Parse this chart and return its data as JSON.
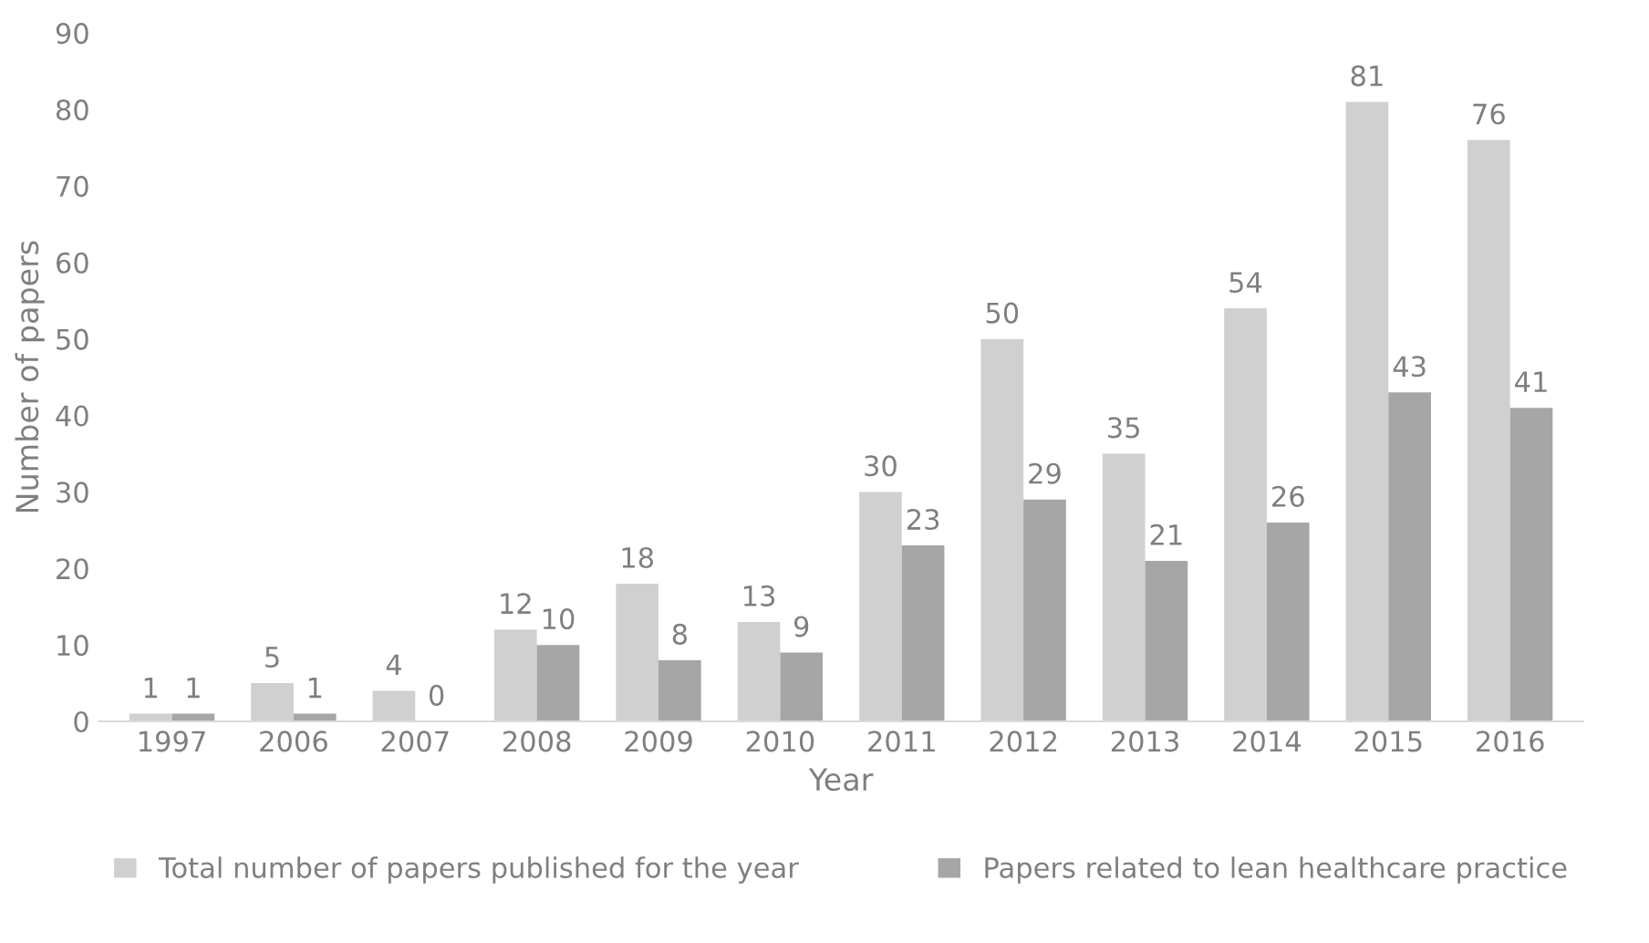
{
  "chart_data": {
    "type": "bar",
    "xlabel": "Year",
    "ylabel": "Number of papers",
    "categories": [
      "1997",
      "2006",
      "2007",
      "2008",
      "2009",
      "2010",
      "2011",
      "2012",
      "2013",
      "2014",
      "2015",
      "2016"
    ],
    "series": [
      {
        "name": "Total number of papers published for the year",
        "color": "#d0d0d0",
        "values": [
          1,
          5,
          4,
          12,
          18,
          13,
          30,
          50,
          35,
          54,
          81,
          76
        ]
      },
      {
        "name": "Papers related to lean healthcare practice",
        "color": "#a6a6a6",
        "values": [
          1,
          1,
          0,
          10,
          8,
          9,
          23,
          29,
          21,
          26,
          43,
          41
        ]
      }
    ],
    "ylim": [
      0,
      90
    ],
    "yticks": [
      0,
      10,
      20,
      30,
      40,
      50,
      60,
      70,
      80,
      90
    ],
    "grid": false,
    "legend": "bottom",
    "data_labels": true
  }
}
